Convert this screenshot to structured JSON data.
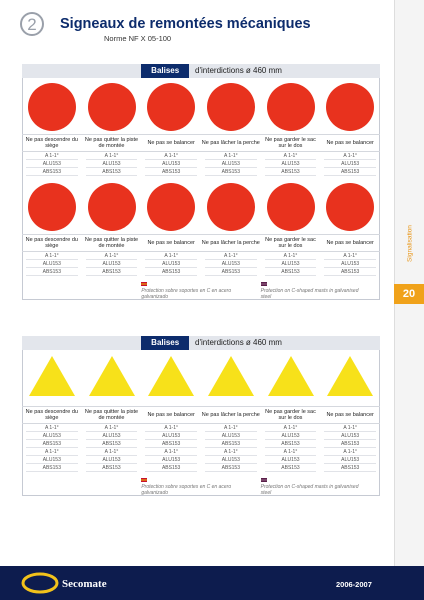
{
  "header": {
    "number": "2",
    "title": "Signeaux de remontées mécaniques",
    "subtitle": "Norme NF X 05-100"
  },
  "sidebar": {
    "label": "Signalisation",
    "page": "20"
  },
  "sections": [
    {
      "tag": "Balises",
      "title": "d'interdictions ø 460 mm",
      "shape": "circle",
      "color": "#e8321e",
      "rows": [
        {
          "items": [
            {
              "label": "Ne pas descendre du siège",
              "codes": [
                "A 1-1°",
                "ALU153",
                "ABS153"
              ]
            },
            {
              "label": "Ne pas quitter la piste de montée",
              "codes": [
                "A 1-1°",
                "ALU153",
                "ABS153"
              ]
            },
            {
              "label": "Ne pas se balancer",
              "codes": [
                "A 1-1°",
                "ALU153",
                "ABS153"
              ]
            },
            {
              "label": "Ne pas lâcher la perche",
              "codes": [
                "A 1-1°",
                "ALU153",
                "ABS153"
              ]
            },
            {
              "label": "Ne pas garder le sac sur le dos",
              "codes": [
                "A 1-1°",
                "ALU153",
                "ABS153"
              ]
            },
            {
              "label": "Ne pas se balancer",
              "codes": [
                "A 1-1°",
                "ALU153",
                "ABS153"
              ]
            }
          ]
        },
        {
          "items": [
            {
              "label": "Ne pas descendre du siège",
              "codes": [
                "A 1-1°",
                "ALU153",
                "ABS153"
              ]
            },
            {
              "label": "Ne pas quitter la piste de montée",
              "codes": [
                "A 1-1°",
                "ALU153",
                "ABS153"
              ]
            },
            {
              "label": "Ne pas se balancer",
              "codes": [
                "A 1-1°",
                "ALU153",
                "ABS153"
              ]
            },
            {
              "label": "Ne pas lâcher la perche",
              "codes": [
                "A 1-1°",
                "ALU153",
                "ABS153"
              ]
            },
            {
              "label": "Ne pas garder le sac sur le dos",
              "codes": [
                "A 1-1°",
                "ALU153",
                "ABS153"
              ]
            },
            {
              "label": "Ne pas se balancer",
              "codes": [
                "A 1-1°",
                "ALU153",
                "ABS153"
              ]
            }
          ]
        }
      ],
      "notes": [
        "Protection sobre soportes en C en acero galvanizado",
        "Protection on C-shaped masts in galvanised steel"
      ]
    },
    {
      "tag": "Balises",
      "title": "d'interdictions ø 460 mm",
      "shape": "triangle",
      "color": "#f7e11a",
      "rows": [
        {
          "items": [
            {
              "label": "Ne pas descendre du siège",
              "codes": [
                "A 1-1°",
                "ALU153",
                "ABS153",
                "A 1-1°",
                "ALU153",
                "ABS153"
              ]
            },
            {
              "label": "Ne pas quitter la piste de montée",
              "codes": [
                "A 1-1°",
                "ALU153",
                "ABS153",
                "A 1-1°",
                "ALU153",
                "ABS153"
              ]
            },
            {
              "label": "Ne pas se balancer",
              "codes": [
                "A 1-1°",
                "ALU153",
                "ABS153",
                "A 1-1°",
                "ALU153",
                "ABS153"
              ]
            },
            {
              "label": "Ne pas lâcher la perche",
              "codes": [
                "A 1-1°",
                "ALU153",
                "ABS153",
                "A 1-1°",
                "ALU153",
                "ABS153"
              ]
            },
            {
              "label": "Ne pas garder le sac sur le dos",
              "codes": [
                "A 1-1°",
                "ALU153",
                "ABS153",
                "A 1-1°",
                "ALU153",
                "ABS153"
              ]
            },
            {
              "label": "Ne pas se balancer",
              "codes": [
                "A 1-1°",
                "ALU153",
                "ABS153",
                "A 1-1°",
                "ALU153",
                "ABS153"
              ]
            }
          ]
        }
      ],
      "notes": [
        "Protection sobre soportes en C en acero galvanizado",
        "Protection on C-shaped masts in galvanised steel"
      ]
    }
  ],
  "footer": {
    "brand": "Secomate",
    "years": "2006-2007"
  }
}
